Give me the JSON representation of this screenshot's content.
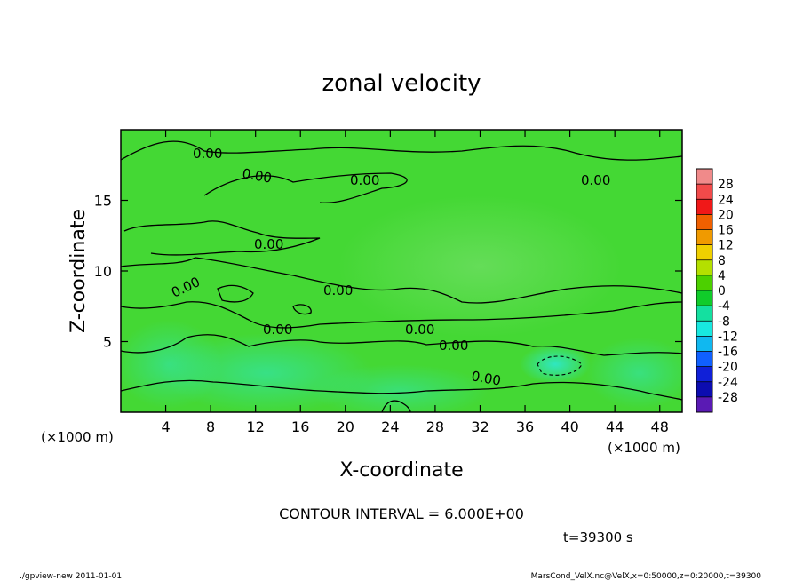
{
  "chart_data": {
    "type": "heatmap",
    "title": "zonal velocity",
    "xlabel": "X-coordinate",
    "ylabel": "Z-coordinate",
    "x_unit_note_left": "(×1000 m)",
    "x_unit_note_right": "(×1000 m)",
    "x_ticks": [
      4,
      8,
      12,
      16,
      20,
      24,
      28,
      32,
      36,
      40,
      44,
      48
    ],
    "y_ticks": [
      5,
      10,
      15
    ],
    "xlim": [
      0,
      50
    ],
    "ylim": [
      0,
      20
    ],
    "colorbar": {
      "levels": [
        28,
        24,
        20,
        16,
        12,
        8,
        4,
        0,
        -4,
        -8,
        -12,
        -16,
        -20,
        -24,
        -28
      ],
      "colors": [
        "#f08a8a",
        "#f24a4a",
        "#f01818",
        "#f06000",
        "#f09a00",
        "#f0d000",
        "#b4e000",
        "#4cd000",
        "#10cc2a",
        "#14e0a0",
        "#18e8e0",
        "#10b8f0",
        "#1060ff",
        "#1020d8",
        "#0c0cb0",
        "#5a1ab4"
      ]
    },
    "contour_labels": [
      "0.00",
      "0.00",
      "0.00",
      "0.00",
      "0.00",
      "0.00",
      "0.00",
      "0.00",
      "0.00",
      "0.00",
      "0.00"
    ],
    "contour_interval": "CONTOUR INTERVAL = 6.000E+00",
    "time_label": "t=39300 s",
    "footer_left": "./gpview-new 2011-01-01",
    "footer_right": "MarsCond_VelX.nc@VelX,x=0:50000,z=0:20000,t=39300"
  }
}
